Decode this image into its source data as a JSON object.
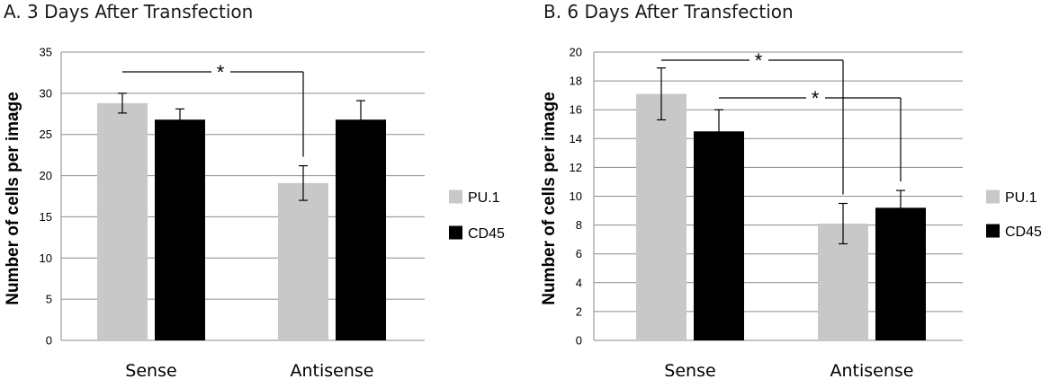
{
  "chart_data": [
    {
      "type": "bar",
      "title": "A. 3 Days After Transfection",
      "xlabel": "",
      "ylabel": "Number of cells per image",
      "categories": [
        "Sense",
        "Antisense"
      ],
      "ylim": [
        0,
        35
      ],
      "yticks": [
        0,
        5,
        10,
        15,
        20,
        25,
        30,
        35
      ],
      "grid": true,
      "legend": "right",
      "series": [
        {
          "name": "PU.1",
          "color": "#c8c8c8",
          "values": [
            28.8,
            19.1
          ],
          "errors": [
            1.2,
            2.1
          ]
        },
        {
          "name": "CD45",
          "color": "#000000",
          "values": [
            26.8,
            26.8
          ],
          "errors": [
            1.3,
            2.3
          ]
        }
      ],
      "annotations": [
        {
          "label": "*",
          "from": {
            "category": "Sense",
            "series": "PU.1"
          },
          "to": {
            "category": "Antisense",
            "series": "PU.1"
          }
        }
      ]
    },
    {
      "type": "bar",
      "title": "B. 6 Days After Transfection",
      "xlabel": "",
      "ylabel": "Number of cells per image",
      "categories": [
        "Sense",
        "Antisense"
      ],
      "ylim": [
        0,
        20
      ],
      "yticks": [
        0,
        2,
        4,
        6,
        8,
        10,
        12,
        14,
        16,
        18,
        20
      ],
      "grid": true,
      "legend": "right",
      "series": [
        {
          "name": "PU.1",
          "color": "#c8c8c8",
          "values": [
            17.1,
            8.1
          ],
          "errors": [
            1.8,
            1.4
          ]
        },
        {
          "name": "CD45",
          "color": "#000000",
          "values": [
            14.5,
            9.2
          ],
          "errors": [
            1.5,
            1.2
          ]
        }
      ],
      "annotations": [
        {
          "label": "*",
          "from": {
            "category": "Sense",
            "series": "PU.1"
          },
          "to": {
            "category": "Antisense",
            "series": "PU.1"
          }
        },
        {
          "label": "*",
          "from": {
            "category": "Sense",
            "series": "CD45"
          },
          "to": {
            "category": "Antisense",
            "series": "CD45"
          }
        }
      ]
    }
  ]
}
